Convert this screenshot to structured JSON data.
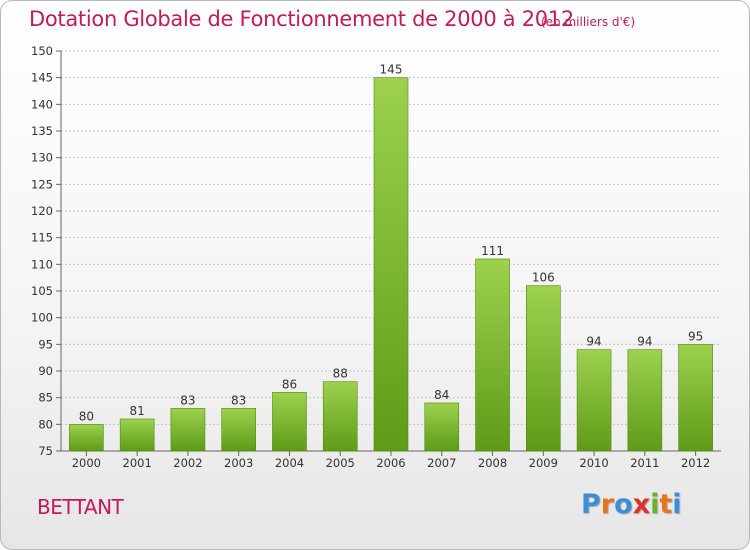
{
  "title": "Dotation Globale de Fonctionnement de 2000 à 2012",
  "subtitle": "(en milliers d'€)",
  "commune": "BETTANT",
  "logo": {
    "letters": [
      "P",
      "r",
      "o",
      "x",
      "i",
      "t",
      "i"
    ],
    "colors": [
      "#3a8fd6",
      "#e8731a",
      "#3a8fd6",
      "#e0302a",
      "#6ab22e",
      "#e8731a",
      "#3a8fd6"
    ]
  },
  "colors": {
    "title": "#c8185a",
    "bar_light": "#9dd14e",
    "bar_dark": "#5e9b18",
    "grid": "#c8c8c8"
  },
  "chart_data": {
    "type": "bar",
    "categories": [
      "2000",
      "2001",
      "2002",
      "2003",
      "2004",
      "2005",
      "2006",
      "2007",
      "2008",
      "2009",
      "2010",
      "2011",
      "2012"
    ],
    "values": [
      80,
      81,
      83,
      83,
      86,
      88,
      145,
      84,
      111,
      106,
      94,
      94,
      95
    ],
    "title": "Dotation Globale de Fonctionnement de 2000 à 2012",
    "xlabel": "",
    "ylabel": "",
    "ylim": [
      75,
      150
    ],
    "yticks": [
      75,
      80,
      85,
      90,
      95,
      100,
      105,
      110,
      115,
      120,
      125,
      130,
      135,
      140,
      145,
      150
    ],
    "grid": true,
    "data_labels": true
  }
}
